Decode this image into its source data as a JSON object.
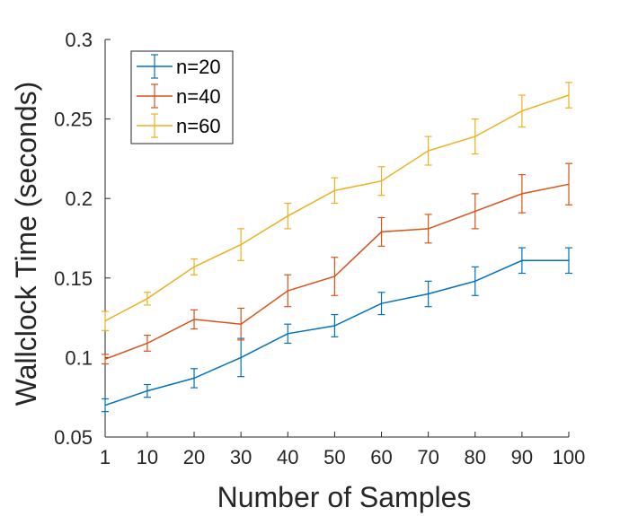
{
  "chart_data": {
    "type": "line",
    "title": "",
    "xlabel": "Number of Samples",
    "ylabel": "Wallclock Time (seconds)",
    "x": [
      1,
      10,
      20,
      30,
      40,
      50,
      60,
      70,
      80,
      90,
      100
    ],
    "xticks": [
      "1",
      "10",
      "20",
      "30",
      "40",
      "50",
      "60",
      "70",
      "80",
      "90",
      "100"
    ],
    "yticks": [
      "0.05",
      "0.1",
      "0.15",
      "0.2",
      "0.25",
      "0.3"
    ],
    "ylim": [
      0.05,
      0.3
    ],
    "grid": false,
    "legend_position": "top-left",
    "error_bars": true,
    "series": [
      {
        "name": "n=20",
        "color": "#0072BD",
        "values": [
          0.07,
          0.079,
          0.087,
          0.1,
          0.115,
          0.12,
          0.134,
          0.14,
          0.148,
          0.161,
          0.161
        ],
        "errors": [
          0.004,
          0.004,
          0.006,
          0.012,
          0.006,
          0.007,
          0.007,
          0.008,
          0.009,
          0.008,
          0.008
        ]
      },
      {
        "name": "n=40",
        "color": "#D95319",
        "values": [
          0.099,
          0.109,
          0.124,
          0.121,
          0.142,
          0.151,
          0.179,
          0.181,
          0.192,
          0.203,
          0.209
        ],
        "errors": [
          0.003,
          0.005,
          0.006,
          0.01,
          0.01,
          0.012,
          0.009,
          0.009,
          0.011,
          0.012,
          0.013
        ]
      },
      {
        "name": "n=60",
        "color": "#EDB120",
        "values": [
          0.123,
          0.137,
          0.157,
          0.171,
          0.189,
          0.205,
          0.211,
          0.23,
          0.239,
          0.255,
          0.265
        ],
        "errors": [
          0.006,
          0.004,
          0.005,
          0.01,
          0.008,
          0.008,
          0.009,
          0.009,
          0.011,
          0.01,
          0.008
        ]
      }
    ]
  }
}
